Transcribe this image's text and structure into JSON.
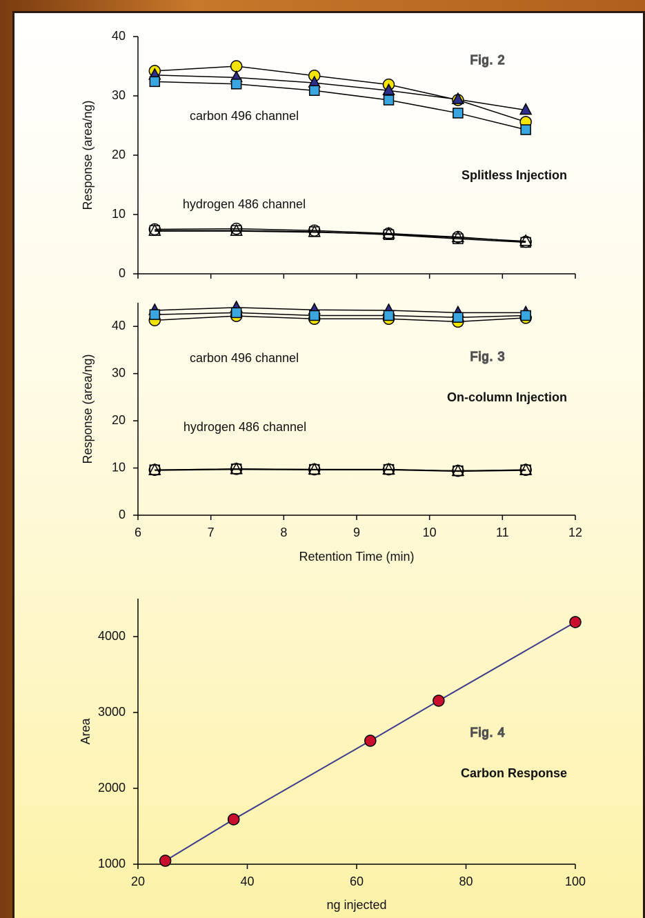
{
  "chart_data": [
    {
      "type": "line",
      "ylabel": "Response (area/ng)",
      "x": [
        6.23,
        7.35,
        8.42,
        9.44,
        10.39,
        11.32
      ],
      "xlim": [
        6,
        12
      ],
      "xticks": [
        6,
        7,
        8,
        9,
        10,
        11,
        12
      ],
      "ylim": [
        0,
        40
      ],
      "yticks": [
        0,
        10,
        20,
        30,
        40
      ],
      "series": [
        {
          "marker": "circle",
          "color": "none",
          "values": [
            7.5,
            7.6,
            7.3,
            6.8,
            6.2,
            5.4
          ]
        },
        {
          "marker": "triangle",
          "color": "none",
          "values": [
            7.2,
            7.2,
            7.0,
            6.7,
            6.1,
            5.5
          ]
        },
        {
          "marker": "square",
          "color": "none",
          "values": [
            7.3,
            7.3,
            7.1,
            6.6,
            5.9,
            5.3
          ]
        },
        {
          "marker": "circle",
          "color": "#f5e400",
          "values": [
            34.2,
            35,
            33.4,
            31.9,
            29.3,
            25.6
          ]
        },
        {
          "marker": "triangle",
          "color": "#2e2f8a",
          "values": [
            33.5,
            33.1,
            32.2,
            30.9,
            29.4,
            27.6
          ]
        },
        {
          "marker": "square",
          "color": "#3aa6e0",
          "values": [
            32.4,
            32,
            30.9,
            29.3,
            27.1,
            24.3
          ]
        }
      ],
      "annotations": [
        {
          "text": "Fig. 2",
          "color": "#ffffff"
        },
        {
          "text": "carbon 496 channel",
          "color": "#c8102e"
        },
        {
          "text": "hydrogen 486 channel",
          "color": "#3a3a90"
        },
        {
          "text": "Splitless Injection",
          "color": "#111111"
        }
      ]
    },
    {
      "type": "line",
      "ylabel": "Response (area/ng)",
      "xlabel": "Retention Time (min)",
      "x": [
        6.23,
        7.35,
        8.42,
        9.44,
        10.39,
        11.32
      ],
      "xlim": [
        6,
        12
      ],
      "xticks": [
        6,
        7,
        8,
        9,
        10,
        11,
        12
      ],
      "ylim": [
        0,
        45
      ],
      "yticks": [
        0,
        10,
        20,
        30,
        40
      ],
      "series": [
        {
          "marker": "circle",
          "color": "none",
          "values": [
            9.6,
            9.8,
            9.7,
            9.7,
            9.4,
            9.6
          ]
        },
        {
          "marker": "triangle",
          "color": "none",
          "values": [
            9.5,
            9.7,
            9.6,
            9.6,
            9.3,
            9.5
          ]
        },
        {
          "marker": "square",
          "color": "none",
          "values": [
            9.6,
            9.8,
            9.7,
            9.7,
            9.4,
            9.6
          ]
        },
        {
          "marker": "circle",
          "color": "#f5e400",
          "values": [
            41.3,
            42.2,
            41.6,
            41.6,
            41,
            41.8
          ]
        },
        {
          "marker": "triangle",
          "color": "#2e2f8a",
          "values": [
            43.4,
            44,
            43.5,
            43.4,
            42.9,
            42.9
          ]
        },
        {
          "marker": "square",
          "color": "#3aa6e0",
          "values": [
            42.5,
            42.9,
            42.3,
            42.3,
            41.9,
            42.3
          ]
        }
      ],
      "annotations": [
        {
          "text": "Fig. 3",
          "color": "#ffffff"
        },
        {
          "text": "carbon 496 channel",
          "color": "#c8102e"
        },
        {
          "text": "hydrogen 486 channel",
          "color": "#3a3a90"
        },
        {
          "text": "On-column Injection",
          "color": "#111111"
        }
      ]
    },
    {
      "type": "scatter",
      "ylabel": "Area",
      "xlabel": "ng injected",
      "x": [
        25,
        37.5,
        62.5,
        75,
        100
      ],
      "xlim": [
        20,
        100
      ],
      "xticks": [
        20,
        40,
        60,
        80,
        100
      ],
      "ylim": [
        1000,
        4500
      ],
      "yticks": [
        1000,
        2000,
        3000,
        4000
      ],
      "series": [
        {
          "marker": "circle",
          "color": "#c8102e",
          "line_color": "#3c3c8c",
          "values": [
            1045,
            1591,
            2627,
            3155,
            4191
          ]
        }
      ],
      "annotations": [
        {
          "text": "Fig. 4",
          "color": "#ffffff"
        },
        {
          "text": "Carbon Response",
          "color": "#111111"
        }
      ]
    }
  ]
}
